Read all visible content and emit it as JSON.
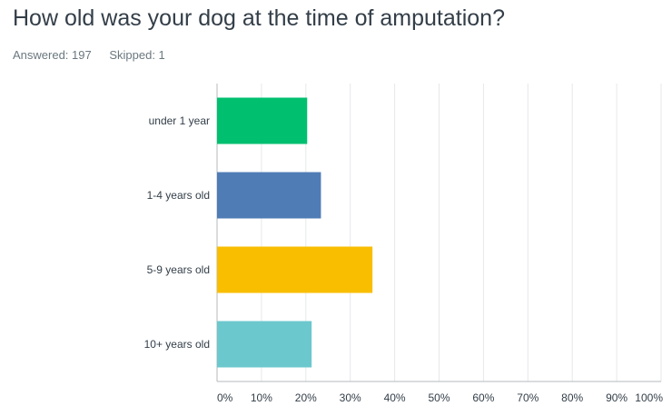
{
  "question": {
    "title": "How old was your dog at the time of amputation?",
    "answered": "Answered: 197",
    "skipped": "Skipped: 1"
  },
  "chart_data": {
    "type": "bar",
    "orientation": "horizontal",
    "categories": [
      "under 1 year",
      "1-4 years old",
      "5-9 years old",
      "10+ years old"
    ],
    "values": [
      20.3,
      23.4,
      35.0,
      21.3
    ],
    "colors": [
      "#00bf6f",
      "#507cb6",
      "#f9be00",
      "#6bc8cd"
    ],
    "xlim": [
      0,
      100
    ],
    "xticks": [
      0,
      10,
      20,
      30,
      40,
      50,
      60,
      70,
      80,
      90,
      100
    ],
    "xtick_labels": [
      "0%",
      "10%",
      "20%",
      "30%",
      "40%",
      "50%",
      "60%",
      "70%",
      "80%",
      "90%",
      "100%"
    ],
    "grid": true,
    "legend": "none"
  }
}
